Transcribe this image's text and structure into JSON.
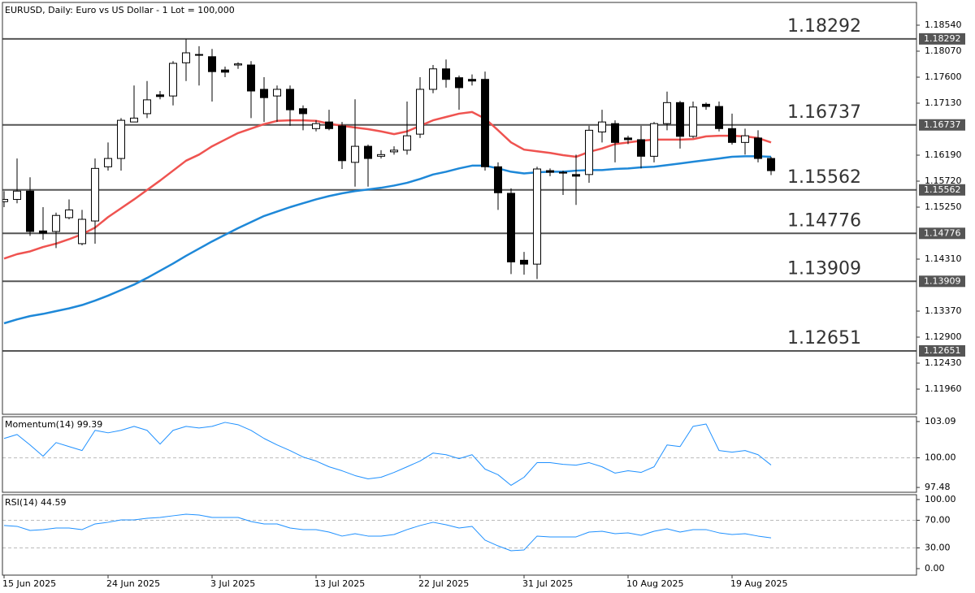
{
  "chart_data": [
    {
      "type": "candlestick",
      "title": "EURUSD, Daily:  Euro vs US Dollar - 1 Lot = 100,000",
      "categories": [
        "15 Jun 2025",
        null,
        null,
        null,
        null,
        null,
        null,
        null,
        "24 Jun 2025",
        null,
        null,
        null,
        null,
        null,
        null,
        null,
        "3 Jul 2025",
        null,
        null,
        null,
        null,
        null,
        null,
        null,
        "13 Jul 2025",
        null,
        null,
        null,
        null,
        null,
        null,
        null,
        "22 Jul 2025",
        null,
        null,
        null,
        null,
        null,
        null,
        null,
        "31 Jul 2025",
        null,
        null,
        null,
        null,
        null,
        null,
        null,
        "10 Aug 2025",
        null,
        null,
        null,
        null,
        null,
        null,
        null,
        "19 Aug 2025",
        null,
        null,
        null
      ],
      "open": [
        1.1535,
        1.1539,
        1.1554,
        1.1482,
        1.1481,
        1.1506,
        1.1459,
        1.15,
        1.1598,
        1.1613,
        1.1679,
        1.1694,
        1.1728,
        1.1726,
        1.1786,
        1.1801,
        1.1797,
        1.1773,
        1.1782,
        1.1782,
        1.1738,
        1.1726,
        1.1738,
        1.1703,
        1.1667,
        1.1679,
        1.1672,
        1.1606,
        1.1635,
        1.1617,
        1.1625,
        1.1628,
        1.1657,
        1.1738,
        1.1775,
        1.1759,
        1.1756,
        1.1756,
        1.1598,
        1.155,
        1.1429,
        1.1422,
        1.1591,
        1.1587,
        1.1584,
        1.1584,
        1.1661,
        1.1676,
        1.165,
        1.1647,
        1.1617,
        1.1676,
        1.1714,
        1.1653,
        1.1711,
        1.1707,
        1.1667,
        1.1642,
        1.165,
        1.1613
      ],
      "high": [
        1.1554,
        1.1613,
        1.1579,
        1.1525,
        1.1515,
        1.1539,
        1.152,
        1.1613,
        1.1642,
        1.1686,
        1.1745,
        1.1753,
        1.1735,
        1.1789,
        1.1829,
        1.1816,
        1.1811,
        1.1779,
        1.1787,
        1.1789,
        1.176,
        1.1745,
        1.1745,
        1.1709,
        1.1682,
        1.1701,
        1.1679,
        1.172,
        1.1638,
        1.1628,
        1.1635,
        1.1716,
        1.176,
        1.1782,
        1.1792,
        1.1763,
        1.1765,
        1.177,
        1.1606,
        1.1559,
        1.1444,
        1.1598,
        1.1595,
        1.1591,
        1.162,
        1.1672,
        1.1701,
        1.1682,
        1.1654,
        1.1672,
        1.1679,
        1.1734,
        1.1717,
        1.1716,
        1.1714,
        1.1716,
        1.1694,
        1.1667,
        1.1664,
        1.1616
      ],
      "low": [
        1.1525,
        1.1532,
        1.1473,
        1.1466,
        1.1451,
        1.1503,
        1.1456,
        1.1459,
        1.1591,
        1.1591,
        1.1679,
        1.1686,
        1.172,
        1.1709,
        1.1753,
        1.1745,
        1.1716,
        1.176,
        1.1775,
        1.1686,
        1.1679,
        1.1679,
        1.1672,
        1.1664,
        1.1662,
        1.1664,
        1.1594,
        1.1562,
        1.1562,
        1.1613,
        1.162,
        1.162,
        1.165,
        1.1731,
        1.1741,
        1.1701,
        1.1745,
        1.1591,
        1.152,
        1.1404,
        1.1403,
        1.1395,
        1.1581,
        1.1547,
        1.1529,
        1.1569,
        1.1642,
        1.1606,
        1.1639,
        1.1595,
        1.1606,
        1.1664,
        1.1631,
        1.165,
        1.1701,
        1.1662,
        1.1638,
        1.162,
        1.1606,
        1.1583
      ],
      "close": [
        1.1539,
        1.1554,
        1.1481,
        1.1478,
        1.151,
        1.152,
        1.1503,
        1.1595,
        1.1613,
        1.1682,
        1.1686,
        1.1719,
        1.1725,
        1.1785,
        1.1804,
        1.18,
        1.177,
        1.1769,
        1.1784,
        1.1735,
        1.1723,
        1.1738,
        1.1701,
        1.1694,
        1.1676,
        1.1667,
        1.1609,
        1.1635,
        1.1613,
        1.162,
        1.1628,
        1.1654,
        1.1738,
        1.1775,
        1.1756,
        1.1741,
        1.1753,
        1.1598,
        1.1551,
        1.1426,
        1.1422,
        1.1594,
        1.1588,
        1.1588,
        1.1581,
        1.1664,
        1.1679,
        1.1642,
        1.1647,
        1.1617,
        1.1676,
        1.1714,
        1.1653,
        1.1706,
        1.1707,
        1.1667,
        1.1642,
        1.1654,
        1.1613,
        1.1591
      ],
      "up_color": "#ffffff",
      "down_color": "#000000",
      "series": [
        {
          "color": "#ef5350",
          "values": [
            1.1432,
            1.144,
            1.1445,
            1.1453,
            1.1459,
            1.1467,
            1.1476,
            1.1488,
            1.1507,
            1.1523,
            1.1539,
            1.1556,
            1.1573,
            1.1591,
            1.1609,
            1.162,
            1.1635,
            1.1647,
            1.1659,
            1.1667,
            1.1675,
            1.1681,
            1.1682,
            1.1682,
            1.1681,
            1.1676,
            1.1672,
            1.1669,
            1.1666,
            1.1662,
            1.1657,
            1.1662,
            1.1672,
            1.1682,
            1.1688,
            1.1694,
            1.1697,
            1.1685,
            1.1664,
            1.1642,
            1.1629,
            1.1626,
            1.1623,
            1.1619,
            1.1616,
            1.1625,
            1.1631,
            1.1639,
            1.1642,
            1.1645,
            1.1647,
            1.1647,
            1.1647,
            1.1648,
            1.1653,
            1.1654,
            1.1654,
            1.1653,
            1.165,
            1.1642
          ]
        },
        {
          "color": "#1e88d8",
          "values": [
            1.1315,
            1.1322,
            1.1328,
            1.1332,
            1.1337,
            1.1342,
            1.1348,
            1.1356,
            1.1365,
            1.1375,
            1.1385,
            1.1397,
            1.141,
            1.1423,
            1.1437,
            1.145,
            1.1463,
            1.1475,
            1.1487,
            1.1498,
            1.1509,
            1.1517,
            1.1525,
            1.1532,
            1.1539,
            1.1545,
            1.155,
            1.1554,
            1.1557,
            1.156,
            1.1564,
            1.1569,
            1.1576,
            1.1584,
            1.1589,
            1.1595,
            1.16,
            1.16,
            1.1595,
            1.1589,
            1.1586,
            1.1588,
            1.1589,
            1.1589,
            1.1591,
            1.1592,
            1.1592,
            1.1594,
            1.1595,
            1.1597,
            1.1598,
            1.1601,
            1.1604,
            1.1607,
            1.161,
            1.1613,
            1.1616,
            1.1617,
            1.1617,
            1.1616
          ]
        }
      ],
      "levels": [
        1.18292,
        1.16737,
        1.15562,
        1.14776,
        1.13909,
        1.12651
      ],
      "level_color": "#555555",
      "ylim": [
        1.11505,
        1.18951
      ],
      "yticks": [
        {
          "value": 1.1854,
          "label": "1.18540"
        },
        {
          "value": 1.1807,
          "label": "1.18070"
        },
        {
          "value": 1.176,
          "label": "1.17600"
        },
        {
          "value": 1.1713,
          "label": "1.17130"
        },
        {
          "value": 1.1619,
          "label": "1.16190"
        },
        {
          "value": 1.1572,
          "label": "1.15720"
        },
        {
          "value": 1.1525,
          "label": "1.15250"
        },
        {
          "value": 1.1431,
          "label": "1.14310"
        },
        {
          "value": 1.1337,
          "label": "1.13370"
        },
        {
          "value": 1.129,
          "label": "1.12900"
        },
        {
          "value": 1.1243,
          "label": "1.12430"
        },
        {
          "value": 1.1196,
          "label": "1.11960"
        }
      ],
      "grid": false
    },
    {
      "type": "line",
      "title": "Momentum(14) 99.39",
      "series": [
        {
          "color": "#1e90ff",
          "values": [
            101.65,
            101.99,
            101.1,
            100.14,
            101.3,
            100.96,
            100.62,
            102.34,
            102.13,
            102.34,
            102.68,
            102.34,
            101.17,
            102.34,
            102.68,
            102.54,
            102.68,
            103.02,
            102.82,
            102.34,
            101.65,
            101.1,
            100.62,
            100.07,
            99.73,
            99.24,
            98.9,
            98.49,
            98.21,
            98.35,
            98.76,
            99.24,
            99.73,
            100.41,
            100.27,
            99.93,
            100.27,
            99.04,
            98.56,
            97.66,
            98.35,
            99.59,
            99.59,
            99.45,
            99.38,
            99.59,
            99.24,
            98.7,
            98.9,
            98.76,
            99.24,
            101.1,
            100.96,
            102.68,
            102.88,
            100.62,
            100.48,
            100.62,
            100.27,
            99.39
          ]
        }
      ],
      "levels": [
        100
      ],
      "ylim": [
        97.07,
        103.5
      ],
      "yticks": [
        103.09,
        {
          "value": 100,
          "label": "100.00"
        },
        97.48
      ]
    },
    {
      "type": "line",
      "title": "RSI(14) 44.59",
      "series": [
        {
          "color": "#1e90ff",
          "values": [
            62.4,
            61.2,
            55.3,
            56.5,
            58.8,
            58.8,
            56.5,
            64.7,
            67.1,
            70.6,
            70.6,
            72.9,
            74.1,
            76.5,
            78.8,
            77.6,
            74.1,
            74.1,
            74.1,
            68.2,
            64.7,
            64.7,
            58.8,
            56.5,
            56.5,
            52.9,
            47.1,
            50.6,
            47.1,
            47.1,
            49.4,
            56.5,
            62.4,
            67.1,
            63.5,
            58.8,
            61.2,
            41.2,
            32.9,
            25.9,
            27.1,
            47.1,
            45.9,
            45.9,
            45.9,
            52.9,
            54.1,
            50.6,
            51.8,
            48.2,
            54.1,
            57.6,
            52.9,
            56.5,
            56.5,
            51.8,
            49.4,
            50.6,
            47.1,
            44.59
          ]
        }
      ],
      "levels": [
        70,
        30
      ],
      "ylim": [
        -9.4,
        107
      ],
      "yticks": [
        {
          "value": 100,
          "label": "100.00"
        },
        {
          "value": 70,
          "label": "70.00"
        },
        {
          "value": 30,
          "label": "30.00"
        },
        {
          "value": 0,
          "label": "0.00"
        }
      ]
    }
  ]
}
